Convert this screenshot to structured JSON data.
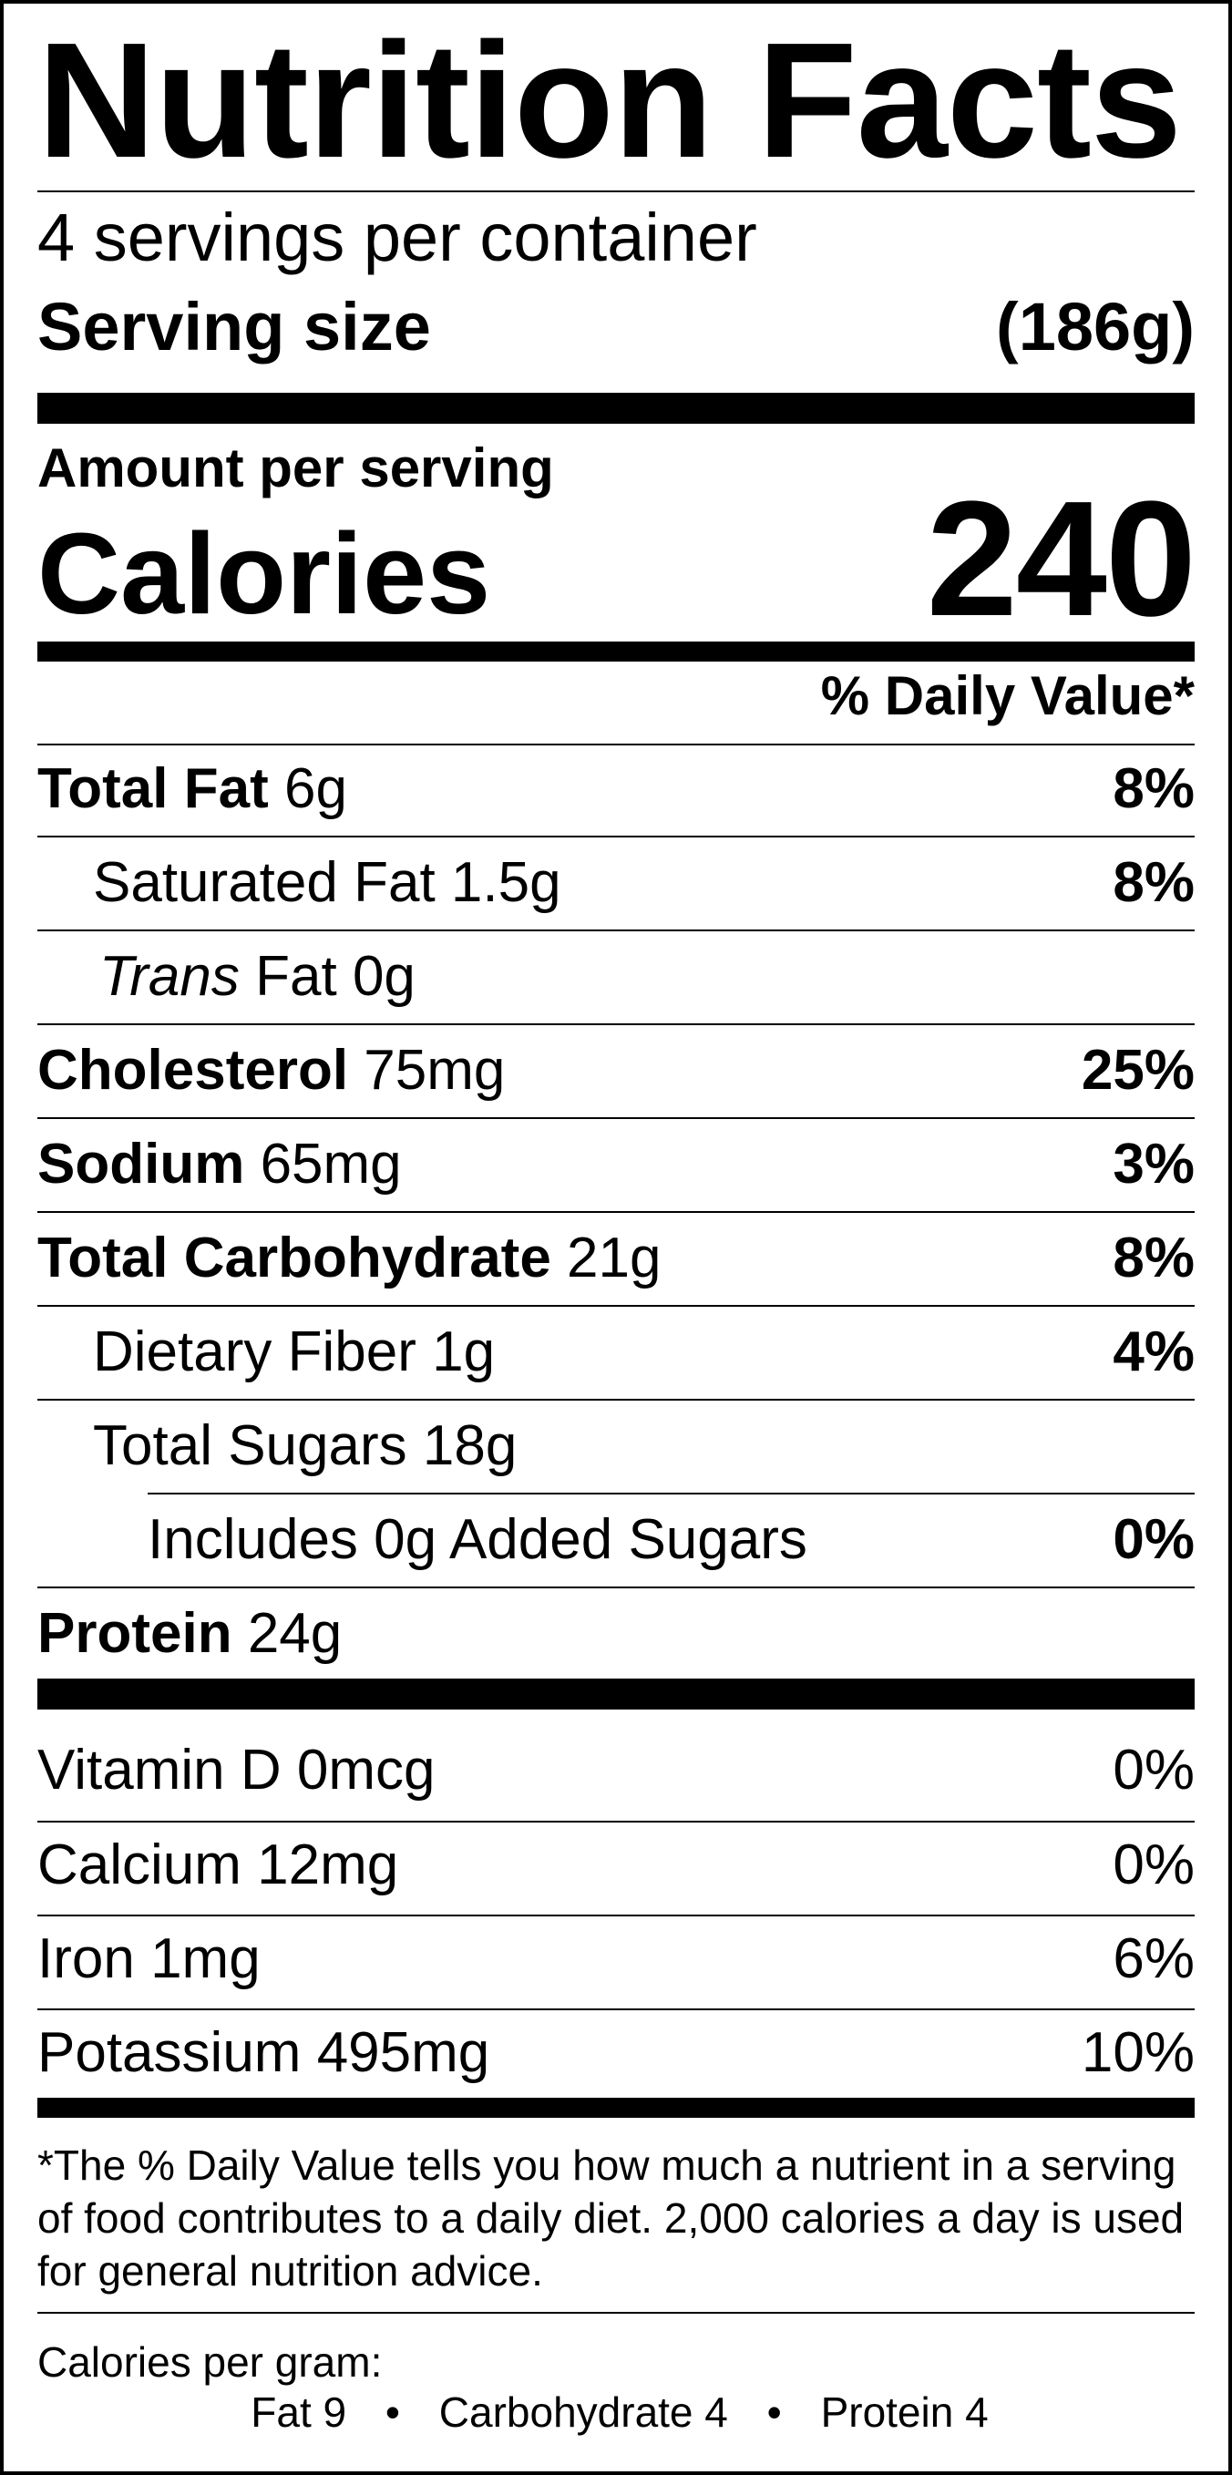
{
  "title": "Nutrition Facts",
  "servings_per_container": "4 servings per container",
  "serving_size_label": "Serving size",
  "serving_size_value": "(186g)",
  "amount_per_serving": "Amount per serving",
  "calories_label": "Calories",
  "calories_value": "240",
  "daily_value_header": "% Daily Value*",
  "nutrients": [
    {
      "name": "Total Fat",
      "amount": "6g",
      "dv": "8%"
    },
    {
      "name": "Saturated Fat",
      "amount": "1.5g",
      "dv": "8%"
    },
    {
      "name": "Trans",
      "name_suffix": "Fat",
      "amount": "0g",
      "dv": ""
    },
    {
      "name": "Cholesterol",
      "amount": "75mg",
      "dv": "25%"
    },
    {
      "name": "Sodium",
      "amount": "65mg",
      "dv": "3%"
    },
    {
      "name": "Total Carbohydrate",
      "amount": "21g",
      "dv": "8%"
    },
    {
      "name": "Dietary Fiber",
      "amount": "1g",
      "dv": "4%"
    },
    {
      "name": "Total Sugars",
      "amount": "18g",
      "dv": ""
    },
    {
      "prefix": "Includes",
      "amount": "0g",
      "name": "Added Sugars",
      "dv": "0%"
    },
    {
      "name": "Protein",
      "amount": "24g",
      "dv": ""
    }
  ],
  "vitamins": [
    {
      "name": "Vitamin D",
      "amount": "0mcg",
      "dv": "0%"
    },
    {
      "name": "Calcium",
      "amount": "12mg",
      "dv": "0%"
    },
    {
      "name": "Iron",
      "amount": "1mg",
      "dv": "6%"
    },
    {
      "name": "Potassium",
      "amount": "495mg",
      "dv": "10%"
    }
  ],
  "footnote": "*The % Daily Value tells you how much a nutrient in a serving of food contributes to a daily diet. 2,000 calories a day is used for general nutrition advice.",
  "calories_per_gram": {
    "label": "Calories per gram:",
    "fat": "Fat 9",
    "carbohydrate": "Carbohydrate 4",
    "protein": "Protein 4",
    "separator": "•"
  }
}
